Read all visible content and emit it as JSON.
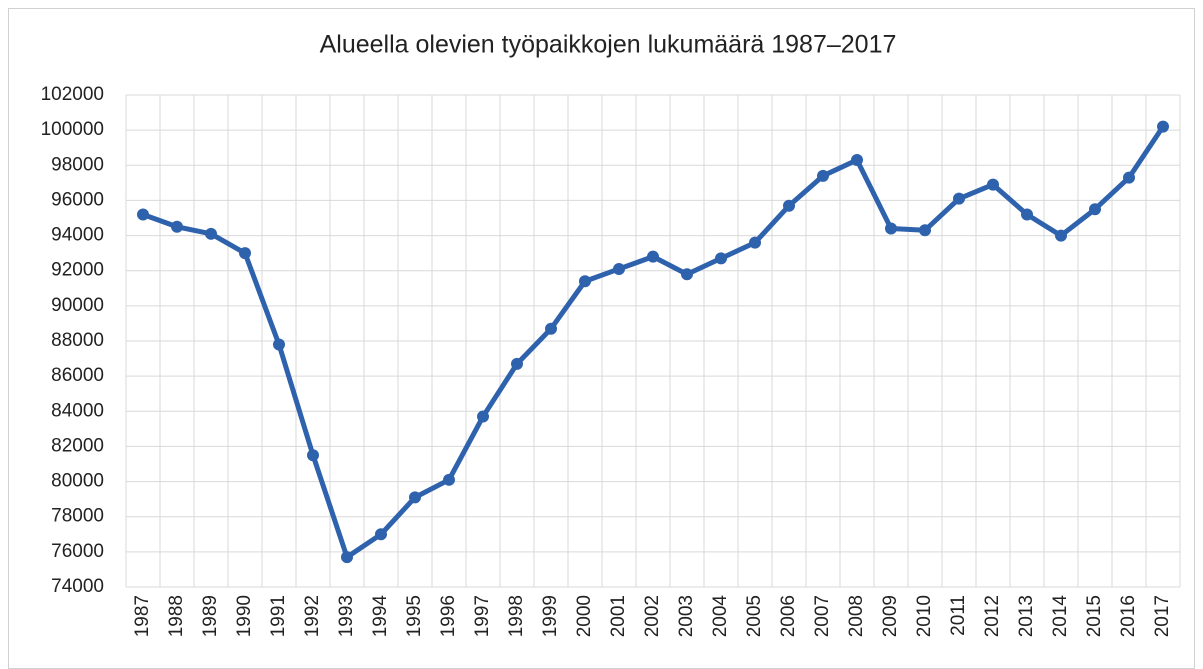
{
  "chart_data": {
    "type": "line",
    "title": "Alueella olevien työpaikkojen lukumäärä 1987–2017",
    "categories": [
      "1987",
      "1988",
      "1989",
      "1990",
      "1991",
      "1992",
      "1993",
      "1994",
      "1995",
      "1996",
      "1997",
      "1998",
      "1999",
      "2000",
      "2001",
      "2002",
      "2003",
      "2004",
      "2005",
      "2006",
      "2007",
      "2008",
      "2009",
      "2010",
      "2011",
      "2012",
      "2013",
      "2014",
      "2015",
      "2016",
      "2017"
    ],
    "values": [
      95200,
      94500,
      94100,
      93000,
      87800,
      81500,
      75700,
      77000,
      79100,
      80100,
      83700,
      86700,
      88700,
      91400,
      92100,
      92800,
      91800,
      92700,
      93600,
      95700,
      97400,
      98300,
      94400,
      94300,
      96100,
      96900,
      95200,
      94000,
      95500,
      97300,
      100200
    ],
    "color": "#2f62ad",
    "ylim": [
      74000,
      102000
    ],
    "yticks": [
      74000,
      76000,
      78000,
      80000,
      82000,
      84000,
      86000,
      88000,
      90000,
      92000,
      94000,
      96000,
      98000,
      100000,
      102000
    ],
    "grid": true
  }
}
